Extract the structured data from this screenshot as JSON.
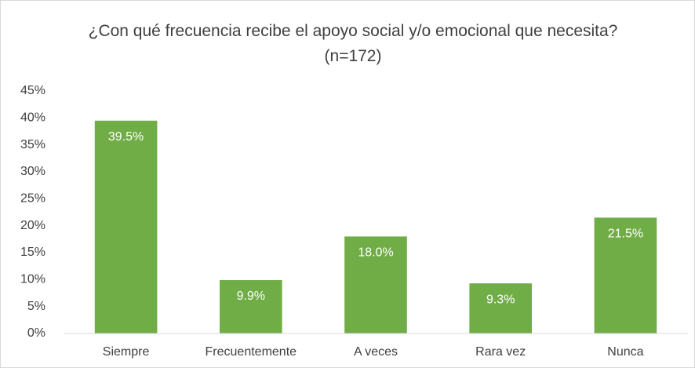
{
  "chart_data": {
    "type": "bar",
    "title": "¿Con qué frecuencia recibe el apoyo social y/o emocional que necesita? (n=172)",
    "categories": [
      "Siempre",
      "Frecuentemente",
      "A veces",
      "Rara vez",
      "Nunca"
    ],
    "values": [
      39.5,
      9.9,
      18.0,
      9.3,
      21.5
    ],
    "value_labels": [
      "39.5%",
      "9.9%",
      "18.0%",
      "9.3%",
      "21.5%"
    ],
    "color": "#70ad47",
    "ylim": [
      0,
      45
    ],
    "yticks": [
      {
        "value": 0,
        "label": "0%"
      },
      {
        "value": 5,
        "label": "5%"
      },
      {
        "value": 10,
        "label": "10%"
      },
      {
        "value": 15,
        "label": "15%"
      },
      {
        "value": 20,
        "label": "20%"
      },
      {
        "value": 25,
        "label": "25%"
      },
      {
        "value": 30,
        "label": "30%"
      },
      {
        "value": 35,
        "label": "35%"
      },
      {
        "value": 40,
        "label": "40%"
      },
      {
        "value": 45,
        "label": "45%"
      }
    ],
    "grid": false
  }
}
